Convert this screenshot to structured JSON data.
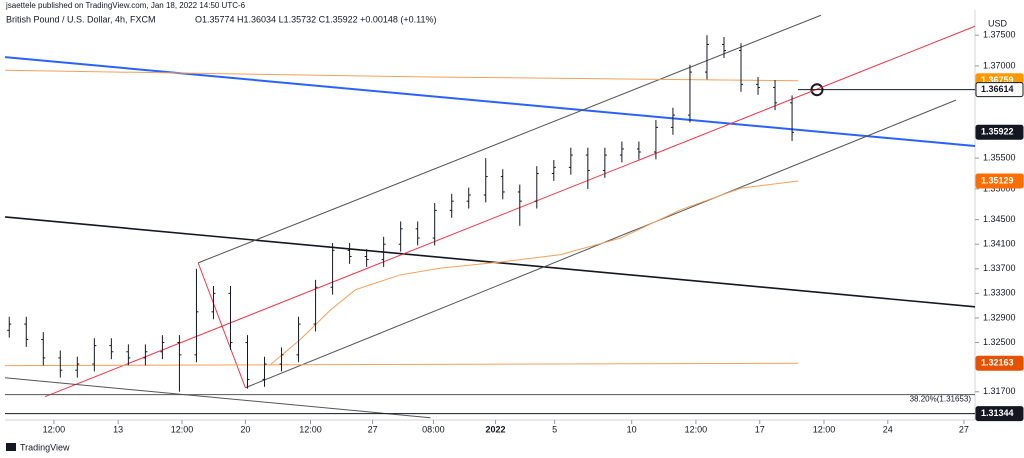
{
  "header": {
    "publisher": "jsaettele published on TradingView.com, Jan 18, 2022 14:50 UTC-6",
    "footer": "TradingView"
  },
  "chart_data": {
    "type": "ohlc",
    "title": "British Pound / U.S. Dollar, 4h, FXCM",
    "subtitle": "O1.35774 H1.36034 L1.35732 C1.35922 +0.00148 (+0.11%)",
    "y_axis_label": "USD",
    "color": "#131722",
    "x": [
      1,
      5,
      9,
      13,
      17,
      21,
      25,
      29,
      33,
      37,
      41,
      45,
      49,
      53,
      57,
      61,
      65,
      69,
      73,
      77,
      81,
      85,
      89,
      93,
      97,
      101,
      105,
      109,
      113,
      117,
      121,
      125,
      129,
      133,
      137,
      141,
      145,
      149,
      153,
      157,
      161,
      165,
      169,
      173,
      177,
      181,
      185
    ],
    "open": [
      1.327,
      1.328,
      1.3255,
      1.3225,
      1.3205,
      1.3215,
      1.3245,
      1.3235,
      1.3225,
      1.3235,
      1.325,
      1.323,
      1.33,
      1.333,
      1.325,
      1.319,
      1.3215,
      1.323,
      1.328,
      1.334,
      1.34,
      1.339,
      1.3385,
      1.341,
      1.3435,
      1.342,
      1.3465,
      1.348,
      1.349,
      1.352,
      1.3495,
      1.348,
      1.3525,
      1.3535,
      1.3555,
      1.353,
      1.3555,
      1.3565,
      1.356,
      1.36,
      1.362,
      1.369,
      1.3735,
      1.3725,
      1.367,
      1.3665,
      1.364
    ],
    "high": [
      1.3292,
      1.3292,
      1.3267,
      1.3237,
      1.3227,
      1.3257,
      1.3257,
      1.3247,
      1.3247,
      1.3262,
      1.3262,
      1.337,
      1.3342,
      1.3342,
      1.3262,
      1.3227,
      1.3242,
      1.3292,
      1.3352,
      1.3412,
      1.3412,
      1.3402,
      1.3422,
      1.3447,
      1.3447,
      1.3477,
      1.3492,
      1.3502,
      1.355,
      1.3532,
      1.3507,
      1.3537,
      1.3547,
      1.3567,
      1.3567,
      1.3567,
      1.3577,
      1.3577,
      1.3612,
      1.3632,
      1.3702,
      1.375,
      1.3747,
      1.3737,
      1.3682,
      1.3677,
      1.3652
    ],
    "low": [
      1.3258,
      1.3243,
      1.3213,
      1.3193,
      1.3193,
      1.3203,
      1.3223,
      1.3213,
      1.3213,
      1.3223,
      1.317,
      1.3218,
      1.3288,
      1.3238,
      1.3175,
      1.3178,
      1.3203,
      1.3218,
      1.3268,
      1.3328,
      1.3378,
      1.3373,
      1.3373,
      1.3398,
      1.3408,
      1.3408,
      1.3453,
      1.3468,
      1.3478,
      1.3483,
      1.344,
      1.3468,
      1.3513,
      1.3523,
      1.35,
      1.3518,
      1.3543,
      1.3548,
      1.3548,
      1.3588,
      1.3608,
      1.3678,
      1.3713,
      1.3658,
      1.3653,
      1.3628,
      1.3578
    ],
    "close": [
      1.328,
      1.3255,
      1.3225,
      1.3205,
      1.3215,
      1.3245,
      1.3235,
      1.3225,
      1.3235,
      1.325,
      1.323,
      1.33,
      1.333,
      1.325,
      1.319,
      1.3215,
      1.323,
      1.328,
      1.334,
      1.34,
      1.339,
      1.3385,
      1.341,
      1.3435,
      1.342,
      1.3465,
      1.348,
      1.349,
      1.352,
      1.3495,
      1.348,
      1.3525,
      1.3535,
      1.3555,
      1.353,
      1.3555,
      1.3565,
      1.356,
      1.36,
      1.362,
      1.369,
      1.3735,
      1.3725,
      1.367,
      1.3665,
      1.364,
      1.3592
    ],
    "overlays": [
      {
        "color": "#2962ff",
        "width": 2,
        "x": [
          0,
          228
        ],
        "values": [
          1.37143,
          1.35697
        ]
      },
      {
        "color": "#131722",
        "width": 1.6,
        "x": [
          0,
          228
        ],
        "values": [
          1.34543,
          1.33081
        ]
      },
      {
        "color": "#555555",
        "width": 1,
        "x": [
          45.4,
          191.8
        ],
        "values": [
          1.33796,
          1.37825
        ]
      },
      {
        "color": "#555555",
        "width": 1,
        "x": [
          56.5,
          223.5
        ],
        "values": [
          1.31765,
          1.36444
        ]
      },
      {
        "color": "#f23645",
        "width": 1,
        "x": [
          45.4,
          56.5
        ],
        "values": [
          1.33796,
          1.31765
        ]
      },
      {
        "color": "#f23645",
        "width": 1,
        "x": [
          9.4,
          228
        ],
        "values": [
          1.31619,
          1.37646
        ]
      },
      {
        "color": "#555555",
        "width": 1,
        "x": [
          0,
          100
        ],
        "values": [
          1.31927,
          1.31277
        ]
      },
      {
        "color": "#f5a05a",
        "width": 1,
        "x": [
          0,
          100,
          186.4
        ],
        "values": [
          1.3693,
          1.3682,
          1.36759
        ]
      },
      {
        "color": "#f5a05a",
        "width": 1,
        "x": [
          0,
          186.4
        ],
        "values": [
          1.32125,
          1.32163
        ]
      },
      {
        "color": "#f5a05a",
        "width": 1,
        "x": [
          62.4,
          69.4,
          76.5,
          82.4,
          92.9,
          102.4,
          116.5,
          130.6,
          144.7,
          158.8,
          172.9,
          186.4
        ],
        "values": [
          1.3214,
          1.3255,
          1.3303,
          1.3336,
          1.336,
          1.3371,
          1.3381,
          1.3393,
          1.342,
          1.3466,
          1.3501,
          1.35129
        ]
      },
      {
        "color": "#131722",
        "width": 1,
        "x": [
          186.4,
          228
        ],
        "values": [
          1.36614,
          1.36614
        ]
      },
      {
        "color": "#555555",
        "width": 1,
        "x": [
          0,
          228
        ],
        "values": [
          1.31653,
          1.31653
        ],
        "label": "38.20%(1.31653)"
      },
      {
        "color": "#131722",
        "width": 1,
        "x": [
          0,
          228
        ],
        "values": [
          1.31344,
          1.31344
        ]
      }
    ],
    "price_badges": [
      {
        "value": 1.36759,
        "color": "#ff9800"
      },
      {
        "value": 1.36614,
        "color": "#ffffff"
      },
      {
        "value": 1.35922,
        "color": "#131722"
      },
      {
        "value": 1.35129,
        "color": "#ff6d00"
      },
      {
        "value": 1.32163,
        "color": "#e65100"
      },
      {
        "value": 1.31344,
        "color": "#131722"
      }
    ],
    "xlim": [
      0,
      228
    ],
    "xticks": [
      {
        "value": 11.5,
        "label": "12:00"
      },
      {
        "value": 26.6,
        "label": "13"
      },
      {
        "value": 41.6,
        "label": "12:00"
      },
      {
        "value": 56.5,
        "label": "20"
      },
      {
        "value": 71.8,
        "label": "12:00"
      },
      {
        "value": 86.4,
        "label": "27"
      },
      {
        "value": 100.7,
        "label": "08:00"
      },
      {
        "value": 115.3,
        "label": "2022"
      },
      {
        "value": 129.2,
        "label": "5"
      },
      {
        "value": 147.3,
        "label": "10"
      },
      {
        "value": 162.4,
        "label": "12:00"
      },
      {
        "value": 177.4,
        "label": "17"
      },
      {
        "value": 192.5,
        "label": "12:00"
      },
      {
        "value": 207.5,
        "label": "24"
      },
      {
        "value": 225.4,
        "label": "27"
      }
    ],
    "ylim": [
      1.3124,
      1.3791
    ],
    "yticks": [
      {
        "value": 1.375,
        "label": "1.37500"
      },
      {
        "value": 1.37,
        "label": "1.37000"
      },
      {
        "value": 1.355,
        "label": "1.35500"
      },
      {
        "value": 1.35,
        "label": "1.35000"
      },
      {
        "value": 1.345,
        "label": "1.34500"
      },
      {
        "value": 1.341,
        "label": "1.34100"
      },
      {
        "value": 1.337,
        "label": "1.33700"
      },
      {
        "value": 1.333,
        "label": "1.33300"
      },
      {
        "value": 1.329,
        "label": "1.32900"
      },
      {
        "value": 1.325,
        "label": "1.32500"
      },
      {
        "value": 1.317,
        "label": "1.31700"
      }
    ]
  }
}
